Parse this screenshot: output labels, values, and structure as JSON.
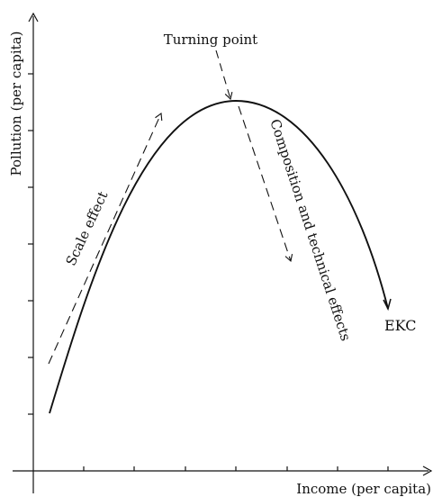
{
  "diagram": {
    "x_axis_label": "Income (per capita)",
    "y_axis_label": "Pollution (per capita)",
    "curve_label": "EKC",
    "turning_point_label": "Turning point",
    "scale_effect_label": "Scale effect",
    "composition_effect_label": "Composition and technical effects"
  }
}
